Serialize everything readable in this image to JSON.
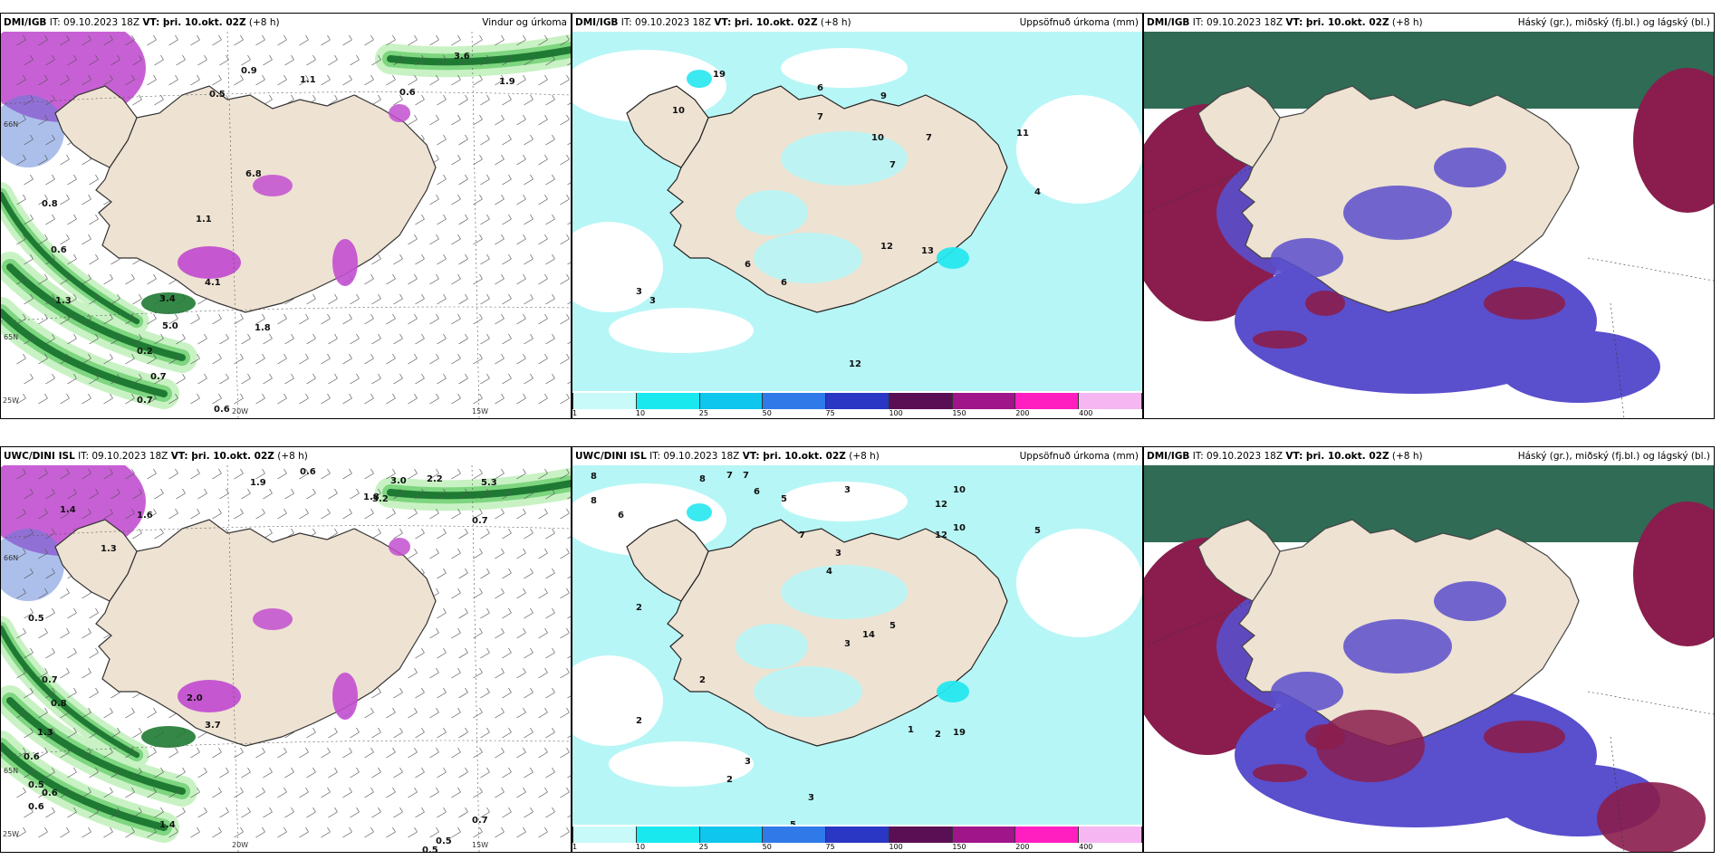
{
  "colors": {
    "land": "#eee2d2",
    "sea_cyan": "#b7f6f6",
    "cyan_mid": "#26e7ef",
    "green_light": "#c9f2c4",
    "green_mid": "#7ed680",
    "green_dark": "#1e7a32",
    "magenta": "#c24fd0",
    "cloud_high": "#2f6b55",
    "cloud_mid": "#5a4fcc",
    "cloud_low": "#8a1d4d",
    "cloud_blue_edge": "#4c86e6"
  },
  "panels": [
    {
      "id": "p1",
      "left_b": "DMI/IGB",
      "left_it": " IT: 09.10.2023 18Z ",
      "left_vt": "VT: þri. 10.okt. 02Z",
      "left_off": " (+8 h)",
      "right": "Vindur og úrkoma",
      "type": "wind",
      "labels": [
        "0.9",
        "1.1",
        "3.6",
        "0.5",
        "0.6",
        "1.9",
        "0.8",
        "0.6",
        "1.3",
        "0.2",
        "0.7",
        "0.7",
        "0.6",
        "4.1",
        "3.4",
        "5.0",
        "1.8",
        "1.1",
        "6.8"
      ],
      "axis": [
        "20W",
        "15W",
        "66N",
        "65N",
        "25W"
      ]
    },
    {
      "id": "p2",
      "left_b": "DMI/IGB",
      "left_it": " IT: 09.10.2023 18Z ",
      "left_vt": "VT: þri. 10.okt. 02Z",
      "left_off": " (+8 h)",
      "right": "Uppsöfnuð úrkoma (mm)",
      "type": "precip",
      "labels": [
        "19",
        "10",
        "6",
        "7",
        "9",
        "7",
        "10",
        "11",
        "7",
        "4",
        "3",
        "13",
        "12",
        "6",
        "6",
        "3",
        "12"
      ],
      "axis": []
    },
    {
      "id": "p3",
      "left_b": "DMI/IGB",
      "left_it": " IT: 09.10.2023 18Z ",
      "left_vt": "VT: þri. 10.okt. 02Z",
      "left_off": " (+8 h)",
      "right": "Háský (gr.), miðský (fj.bl.) og lágský (bl.)",
      "type": "cloud",
      "labels": [],
      "axis": []
    },
    {
      "id": "p4",
      "left_b": "UWC/DINI ISL",
      "left_it": " IT: 09.10.2023 18Z ",
      "left_vt": "VT: þri. 10.okt. 02Z",
      "left_off": " (+8 h)",
      "right": "",
      "type": "wind",
      "labels": [
        "0.6",
        "1.9",
        "3.0",
        "5.3",
        "1.4",
        "1.8",
        "3.2",
        "2.2",
        "1.3",
        "1.6",
        "0.7",
        "0.5",
        "0.7",
        "0.8",
        "1.3",
        "0.6",
        "0.5",
        "0.6",
        "0.6",
        "1.4",
        "0.7",
        "0.5",
        "0.5",
        "2.0",
        "3.7"
      ],
      "axis": [
        "20W",
        "15W",
        "66N",
        "65N",
        "25W"
      ]
    },
    {
      "id": "p5",
      "left_b": "UWC/DINI ISL",
      "left_it": " IT: 09.10.2023 18Z ",
      "left_vt": "VT: þri. 10.okt. 02Z",
      "left_off": " (+8 h)",
      "right": "Uppsöfnuð úrkoma (mm)",
      "type": "precip",
      "labels": [
        "8",
        "7",
        "8",
        "7",
        "6",
        "5",
        "6",
        "3",
        "12",
        "10",
        "5",
        "3",
        "4",
        "2",
        "5",
        "3",
        "2",
        "1",
        "2",
        "3",
        "2",
        "5",
        "12",
        "7",
        "10",
        "14",
        "19",
        "8",
        "3",
        "2"
      ],
      "axis": []
    },
    {
      "id": "p6",
      "left_b": "DMI/IGB",
      "left_it": " IT: 09.10.2023 18Z ",
      "left_vt": "VT: þri. 10.okt. 02Z",
      "left_off": " (+8 h)",
      "right": "Háský (gr.), miðský (fj.bl.) og lágský (bl.)",
      "type": "cloud",
      "labels": [],
      "axis": []
    }
  ],
  "colorbar": {
    "ticks": [
      "1",
      "10",
      "25",
      "50",
      "75",
      "100",
      "150",
      "200",
      "400"
    ],
    "colors": [
      "#c8fafa",
      "#19e8ef",
      "#0ec6ee",
      "#2f7ae8",
      "#2a37c4",
      "#5a0f55",
      "#a0158a",
      "#ff1fc0",
      "#f5b6f2"
    ]
  }
}
